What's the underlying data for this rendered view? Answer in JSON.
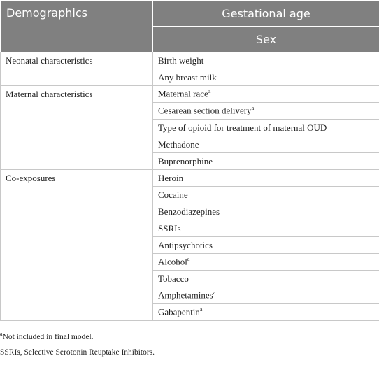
{
  "table": {
    "header": {
      "col1": "Demographics",
      "col2": "Gestational age",
      "col2_sub": "Sex"
    },
    "groups": [
      {
        "label": "Neonatal characteristics",
        "items": [
          {
            "text": "Birth weight"
          },
          {
            "text": "Any breast milk"
          }
        ]
      },
      {
        "label": "Maternal characteristics",
        "items": [
          {
            "text": "Maternal race",
            "sup": "a"
          },
          {
            "text": "Cesarean section delivery",
            "sup": "a"
          },
          {
            "text": "Type of opioid for treatment of maternal OUD"
          },
          {
            "text": "Methadone"
          },
          {
            "text": "Buprenorphine"
          }
        ]
      },
      {
        "label": "Co-exposures",
        "items": [
          {
            "text": "Heroin"
          },
          {
            "text": "Cocaine"
          },
          {
            "text": "Benzodiazepines"
          },
          {
            "text": "SSRIs"
          },
          {
            "text": "Antipsychotics"
          },
          {
            "text": "Alcohol",
            "sup": "a"
          },
          {
            "text": "Tobacco"
          },
          {
            "text": "Amphetamines",
            "sup": "a"
          },
          {
            "text": "Gabapentin",
            "sup": "a"
          }
        ]
      }
    ]
  },
  "footnotes": [
    {
      "sup": "a",
      "text": "Not included in final model."
    },
    {
      "text": "SSRIs, Selective Serotonin Reuptake Inhibitors."
    }
  ]
}
